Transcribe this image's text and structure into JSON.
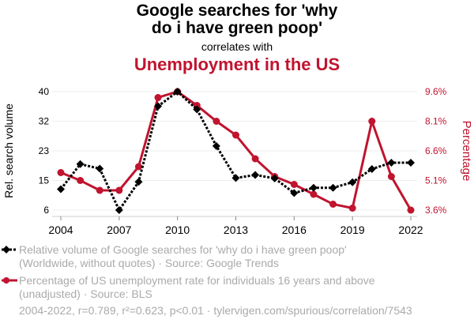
{
  "chart_data": {
    "type": "line",
    "title_line1": "Google searches for 'why",
    "title_line2": "do i have green poop'",
    "correlates": "correlates with",
    "title2": "Unemployment in the US",
    "x": [
      2004,
      2005,
      2006,
      2007,
      2008,
      2009,
      2010,
      2011,
      2012,
      2013,
      2014,
      2015,
      2016,
      2017,
      2018,
      2019,
      2020,
      2021,
      2022
    ],
    "xticks": [
      "2004",
      "2007",
      "2010",
      "2013",
      "2016",
      "2019",
      "2022"
    ],
    "ylabel_left": "Rel. search volume",
    "ylabel_right": "Percentage",
    "yticks_left": [
      "6",
      "15",
      "23",
      "32",
      "40"
    ],
    "yticks_right": [
      "3.6%",
      "5.1%",
      "6.6%",
      "8.1%",
      "9.6%"
    ],
    "ylim_left": [
      6,
      40
    ],
    "ylim_right": [
      3.6,
      9.6
    ],
    "grid": true,
    "series": [
      {
        "axis": "left",
        "color": "#000000",
        "style": "dotted",
        "marker": "diamond",
        "values": [
          12,
          19.2,
          17.9,
          6,
          14.1,
          35.8,
          40,
          34.9,
          24.4,
          15.2,
          16.1,
          15.1,
          10.9,
          12.4,
          12.4,
          14,
          17.8,
          19.6,
          19.6
        ]
      },
      {
        "axis": "right",
        "color": "#c0142f",
        "style": "solid",
        "marker": "circle",
        "values": [
          5.5,
          5.1,
          4.6,
          4.6,
          5.8,
          9.3,
          9.6,
          8.9,
          8.1,
          7.4,
          6.2,
          5.3,
          4.9,
          4.4,
          3.9,
          3.7,
          8.1,
          5.3,
          3.6
        ]
      }
    ]
  },
  "legend": {
    "s1_line1": "Relative volume of Google searches for 'why do i have green poop'",
    "s1_line2": "(Worldwide, without quotes) · Source: Google Trends",
    "s2_line1": "Percentage of US unemployment rate for individuals 16 years and above",
    "s2_line2": "(unadjusted) · Source: BLS"
  },
  "footer": "2004-2022, r=0.789, r²=0.623, p<0.01 · tylervigen.com/spurious/correlation/7543"
}
